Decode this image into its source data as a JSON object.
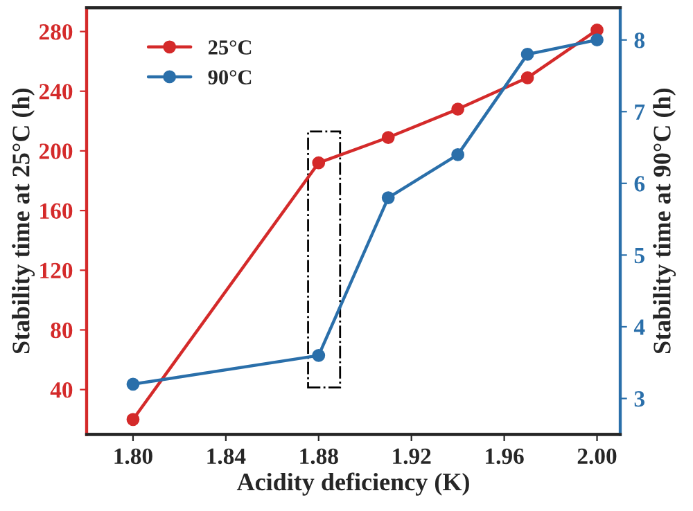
{
  "chart_data": {
    "type": "line",
    "xlabel": "Acidity deficiency (K)",
    "ylabel": "Stability time at 25°C (h)",
    "y2label": "Stability time at 90°C (h)",
    "x": [
      1.8,
      1.88,
      1.91,
      1.94,
      1.97,
      2.0
    ],
    "series": [
      {
        "name": "25°C",
        "color": "#d42a2a",
        "values": [
          20,
          192,
          209,
          228,
          249,
          281
        ]
      },
      {
        "name": "90°C",
        "color": "#2a6faa",
        "axis": "y2",
        "values": [
          3.2,
          3.6,
          5.8,
          6.4,
          7.8,
          8.0
        ]
      }
    ],
    "xlim": [
      1.78,
      2.01
    ],
    "xticks": [
      {
        "value": 1.8,
        "label": "1.80"
      },
      1.84,
      1.88,
      1.92,
      1.96,
      {
        "value": 2.0,
        "label": "2.00"
      }
    ],
    "ylim": [
      10,
      296
    ],
    "yticks": [
      40,
      80,
      120,
      160,
      200,
      240,
      280
    ],
    "y2lim": [
      2.5,
      8.45
    ],
    "y2ticks": [
      3,
      4,
      5,
      6,
      7,
      8
    ],
    "marker": "circle",
    "line_style": "solid",
    "legend": "top left",
    "grid": false
  }
}
